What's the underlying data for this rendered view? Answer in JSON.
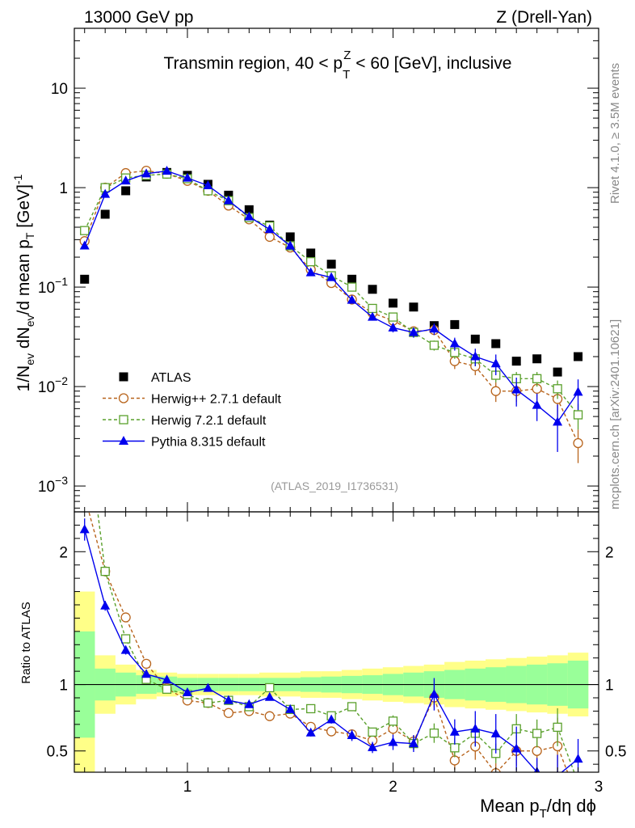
{
  "header": {
    "left": "13000 GeV pp",
    "right": "Z (Drell-Yan)"
  },
  "chart_data": {
    "type": "scatter",
    "title": "Transmin region, 40 < pT^Z < 60 [GeV], inclusive",
    "title_parts": {
      "pre": "Transmin region, 40 < p",
      "sup": "Z",
      "sub": "T",
      "post": " < 60 [GeV], inclusive"
    },
    "analysis_label": "(ATLAS_2019_I1736531)",
    "right_label_top": "Rivet 4.1.0, ≥ 3.5M events",
    "right_label_bottom": "mcplots.cern.ch [arXiv:2401.10621]",
    "xlabel": "Mean pT/dη dϕ",
    "xlabel_parts": {
      "pre": "Mean p",
      "sub": "T",
      "post": "/dη dϕ"
    },
    "ylabel": "1/Nev dNev/d mean pT [GeV]^-1",
    "ylabel_parts": {
      "a": "1/N",
      "a_sub": "ev",
      "b": " dN",
      "b_sub": "ev",
      "c": "/d mean p",
      "c_sub": "T",
      "d": " [GeV]",
      "d_sup": "-1"
    },
    "ratio_ylabel": "Ratio to ATLAS",
    "xlim": [
      0.45,
      3.0
    ],
    "ylim": [
      0.00055,
      40
    ],
    "yscale": "log",
    "ratio_ylim": [
      0.34,
      2.3
    ],
    "x_ticks": [
      {
        "v": 1,
        "label": "1"
      },
      {
        "v": 2,
        "label": "2"
      },
      {
        "v": 3,
        "label": "3"
      }
    ],
    "y_ticks": [
      {
        "v": 10,
        "base": "10",
        "exp": ""
      },
      {
        "v": 1,
        "base": "1",
        "exp": ""
      },
      {
        "v": 0.1,
        "base": "10",
        "exp": "−1"
      },
      {
        "v": 0.01,
        "base": "10",
        "exp": "−2"
      },
      {
        "v": 0.001,
        "base": "10",
        "exp": "−3"
      }
    ],
    "ratio_ticks": [
      {
        "v": 2,
        "label": "2"
      },
      {
        "v": 1,
        "label": "1"
      },
      {
        "v": 0.5,
        "label": "0.5"
      }
    ],
    "x": [
      0.5,
      0.6,
      0.7,
      0.8,
      0.9,
      1.0,
      1.1,
      1.2,
      1.3,
      1.4,
      1.5,
      1.6,
      1.7,
      1.8,
      1.9,
      2.0,
      2.1,
      2.2,
      2.3,
      2.4,
      2.5,
      2.6,
      2.7,
      2.8,
      2.9
    ],
    "band_edges": [
      0.45,
      0.55,
      0.65,
      0.75,
      0.85,
      0.95,
      1.05,
      1.15,
      1.25,
      1.35,
      1.45,
      1.55,
      1.65,
      1.75,
      1.85,
      1.95,
      2.05,
      2.15,
      2.25,
      2.35,
      2.45,
      2.55,
      2.65,
      2.75,
      2.85,
      2.95
    ],
    "band_stat": [
      0.4,
      0.12,
      0.09,
      0.07,
      0.06,
      0.05,
      0.05,
      0.05,
      0.05,
      0.05,
      0.05,
      0.055,
      0.06,
      0.065,
      0.07,
      0.08,
      0.09,
      0.1,
      0.11,
      0.12,
      0.13,
      0.14,
      0.15,
      0.16,
      0.18
    ],
    "band_total": [
      0.7,
      0.22,
      0.15,
      0.11,
      0.09,
      0.08,
      0.08,
      0.08,
      0.08,
      0.09,
      0.09,
      0.1,
      0.1,
      0.11,
      0.12,
      0.13,
      0.14,
      0.15,
      0.17,
      0.18,
      0.19,
      0.2,
      0.21,
      0.22,
      0.24
    ],
    "series": [
      {
        "name": "ATLAS",
        "color": "#000000",
        "marker": "square",
        "line": "none",
        "values": [
          0.12,
          0.54,
          0.93,
          1.28,
          1.42,
          1.33,
          1.08,
          0.84,
          0.6,
          0.42,
          0.32,
          0.22,
          0.17,
          0.12,
          0.095,
          0.069,
          0.063,
          0.041,
          0.042,
          0.03,
          0.027,
          0.018,
          0.019,
          0.014,
          0.02
        ]
      },
      {
        "name": "Herwig++ 2.7.1 default",
        "color": "#b8641c",
        "marker": "circle",
        "line": "dashed",
        "values": [
          0.29,
          1.0,
          1.4,
          1.48,
          1.38,
          1.17,
          0.93,
          0.66,
          0.48,
          0.32,
          0.25,
          0.15,
          0.11,
          0.075,
          0.055,
          0.046,
          0.036,
          0.037,
          0.018,
          0.016,
          0.009,
          0.009,
          0.0095,
          0.0075,
          0.0027
        ],
        "errors": [
          0.01,
          0.02,
          0.03,
          0.03,
          0.03,
          0.02,
          0.02,
          0.015,
          0.01,
          0.008,
          0.006,
          0.005,
          0.004,
          0.003,
          0.003,
          0.003,
          0.003,
          0.003,
          0.003,
          0.003,
          0.002,
          0.002,
          0.003,
          0.003,
          0.001
        ]
      },
      {
        "name": "Herwig 7.2.1 default",
        "color": "#5aa02c",
        "marker": "square-open",
        "line": "dashed",
        "values": [
          0.37,
          1.0,
          1.25,
          1.33,
          1.37,
          1.23,
          0.93,
          0.74,
          0.5,
          0.41,
          0.26,
          0.18,
          0.13,
          0.1,
          0.061,
          0.05,
          0.035,
          0.026,
          0.022,
          0.019,
          0.013,
          0.012,
          0.012,
          0.0095,
          0.0052
        ],
        "errors": [
          0.01,
          0.02,
          0.03,
          0.03,
          0.03,
          0.02,
          0.02,
          0.015,
          0.01,
          0.008,
          0.006,
          0.005,
          0.004,
          0.004,
          0.003,
          0.003,
          0.003,
          0.003,
          0.003,
          0.003,
          0.002,
          0.002,
          0.002,
          0.002,
          0.0015
        ]
      },
      {
        "name": "Pythia 8.315 default",
        "color": "#0000ee",
        "marker": "triangle",
        "line": "solid",
        "values": [
          0.26,
          0.86,
          1.17,
          1.38,
          1.47,
          1.25,
          1.05,
          0.74,
          0.51,
          0.38,
          0.26,
          0.14,
          0.125,
          0.074,
          0.05,
          0.039,
          0.035,
          0.038,
          0.027,
          0.02,
          0.017,
          0.0093,
          0.0065,
          0.0044,
          0.0088
        ],
        "errors": [
          0.01,
          0.02,
          0.03,
          0.03,
          0.03,
          0.02,
          0.02,
          0.015,
          0.01,
          0.01,
          0.008,
          0.006,
          0.005,
          0.005,
          0.004,
          0.004,
          0.004,
          0.005,
          0.004,
          0.004,
          0.004,
          0.003,
          0.002,
          0.0022,
          0.003
        ]
      }
    ]
  }
}
